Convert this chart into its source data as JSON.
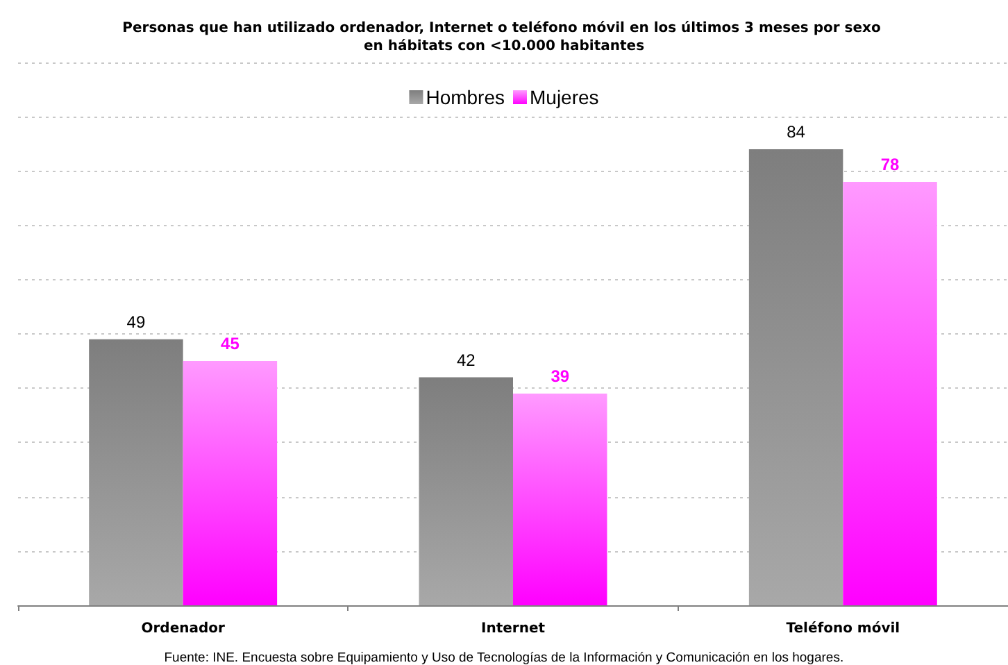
{
  "chart_data": {
    "type": "bar",
    "title": "Personas que han utilizado ordenador, Internet o teléfono móvil en los últimos 3 meses por sexo en hábitats con <10.000 habitantes",
    "categories": [
      "Ordenador",
      "Internet",
      "Teléfono móvil"
    ],
    "series": [
      {
        "name": "Hombres",
        "color": "#939393",
        "values": [
          49,
          42,
          84
        ]
      },
      {
        "name": "Mujeres",
        "color": "#ff4dff",
        "values": [
          45,
          39,
          78
        ]
      }
    ],
    "ylim": [
      0,
      100
    ],
    "yticks": [
      {
        "value": 0,
        "label": null
      },
      {
        "value": 10,
        "label": null
      },
      {
        "value": 20,
        "label": null
      },
      {
        "value": 30,
        "label": null
      },
      {
        "value": 40,
        "label": null
      },
      {
        "value": 50,
        "label": null
      },
      {
        "value": 60,
        "label": null
      },
      {
        "value": 70,
        "label": null
      },
      {
        "value": 80,
        "label": null
      },
      {
        "value": 90,
        "label": null
      },
      {
        "value": 100,
        "label": null
      }
    ],
    "grid": "y",
    "legend": "top",
    "tick_labels": "x",
    "data_labels": true,
    "annotations": [
      "Fuente: INE. Encuesta sobre Equipamiento y Uso de Tecnologías de la Información y Comunicación en los hogares."
    ]
  }
}
